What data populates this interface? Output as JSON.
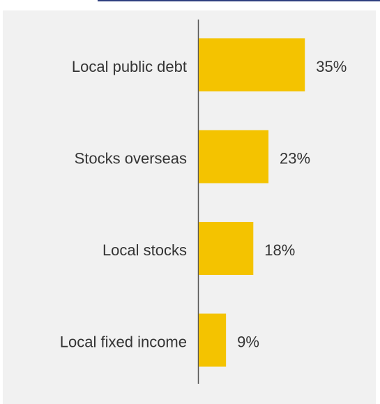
{
  "chart_data": {
    "type": "bar",
    "orientation": "horizontal",
    "categories": [
      "Local public debt",
      "Stocks overseas",
      "Local stocks",
      "Local fixed income"
    ],
    "values": [
      35,
      23,
      18,
      9
    ],
    "value_labels": [
      "35%",
      "23%",
      "18%",
      "9%"
    ],
    "xlim": [
      0,
      40
    ],
    "grid": false,
    "bar_color": "#f4c300"
  },
  "colors": {
    "background": "#f1f1f1",
    "axis": "#555555",
    "top_rule": "#2f3f7f"
  }
}
